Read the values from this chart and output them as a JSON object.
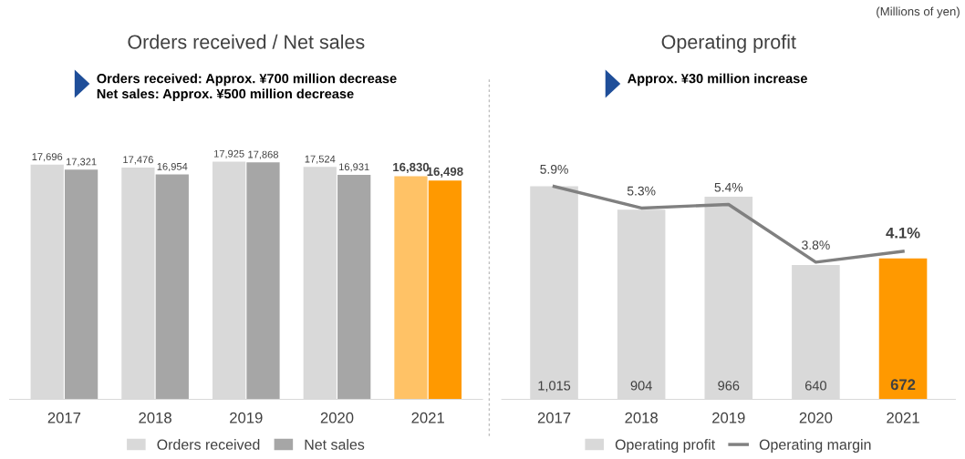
{
  "chart_data": [
    {
      "type": "bar",
      "title": "Orders received / Net sales",
      "subtitle": "Orders received: Approx. ¥700 million decrease\nNet sales: Approx. ¥500 million decrease",
      "categories": [
        "2017",
        "2018",
        "2019",
        "2020",
        "2021"
      ],
      "series": [
        {
          "name": "Orders received",
          "color": "#d9d9d9",
          "colors": [
            "#d9d9d9",
            "#d9d9d9",
            "#d9d9d9",
            "#d9d9d9",
            "#ffc266"
          ],
          "values": [
            17696,
            17476,
            17925,
            17524,
            16830
          ],
          "value_labels": [
            "17,696",
            "17,476",
            "17,925",
            "17,524",
            "16,830"
          ]
        },
        {
          "name": "Net sales",
          "color": "#a6a6a6",
          "colors": [
            "#a6a6a6",
            "#a6a6a6",
            "#a6a6a6",
            "#a6a6a6",
            "#ff9900"
          ],
          "values": [
            17321,
            16954,
            17868,
            16931,
            16498
          ],
          "value_labels": [
            "17,321",
            "16,954",
            "17,868",
            "16,931",
            "16,498"
          ]
        }
      ],
      "legend": "bottom",
      "grid": false
    },
    {
      "type": "bar",
      "title": "Operating profit",
      "subtitle": "Approx. ¥30 million increase",
      "categories": [
        "2017",
        "2018",
        "2019",
        "2020",
        "2021"
      ],
      "series": [
        {
          "name": "Operating profit",
          "color": "#d9d9d9",
          "colors": [
            "#d9d9d9",
            "#d9d9d9",
            "#d9d9d9",
            "#d9d9d9",
            "#ff9900"
          ],
          "values": [
            1015,
            904,
            966,
            640,
            672
          ],
          "value_labels": [
            "1,015",
            "904",
            "966",
            "640",
            "672"
          ]
        },
        {
          "name": "Operating margin",
          "type": "line",
          "axis": "y2",
          "color": "#808080",
          "values": [
            5.9,
            5.3,
            5.4,
            3.8,
            4.1
          ],
          "value_labels": [
            "5.9%",
            "5.3%",
            "5.4%",
            "3.8%",
            "4.1%"
          ],
          "marker": "none"
        }
      ],
      "legend": "bottom",
      "grid": false,
      "annotations": [
        "(Millions of yen)"
      ]
    }
  ]
}
